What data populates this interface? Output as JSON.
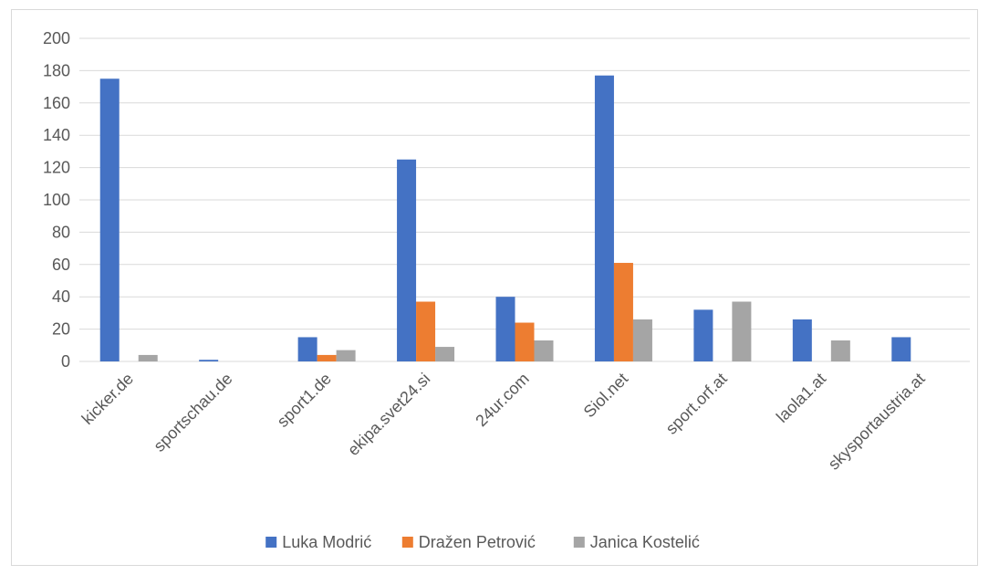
{
  "chart_data": {
    "type": "bar",
    "categories": [
      "kicker.de",
      "sportschau.de",
      "sport1.de",
      "ekipa.svet24.si",
      "24ur.com",
      "Siol.net",
      "sport.orf.at",
      "laola1.at",
      "skysportaustria.at"
    ],
    "series": [
      {
        "name": "Luka Modrić",
        "color": "#4472C4",
        "values": [
          175,
          1,
          15,
          125,
          40,
          177,
          32,
          26,
          15
        ]
      },
      {
        "name": "Dražen Petrović",
        "color": "#ED7D31",
        "values": [
          0,
          0,
          4,
          37,
          24,
          61,
          0,
          0,
          0
        ]
      },
      {
        "name": "Janica Kostelić",
        "color": "#A5A5A5",
        "values": [
          4,
          0,
          7,
          9,
          13,
          26,
          37,
          13,
          0
        ]
      }
    ],
    "ylim": [
      0,
      200
    ],
    "yticks": [
      0,
      20,
      40,
      60,
      80,
      100,
      120,
      140,
      160,
      180,
      200
    ],
    "grid": true,
    "legend_position": "bottom",
    "title": "",
    "xlabel": "",
    "ylabel": ""
  }
}
